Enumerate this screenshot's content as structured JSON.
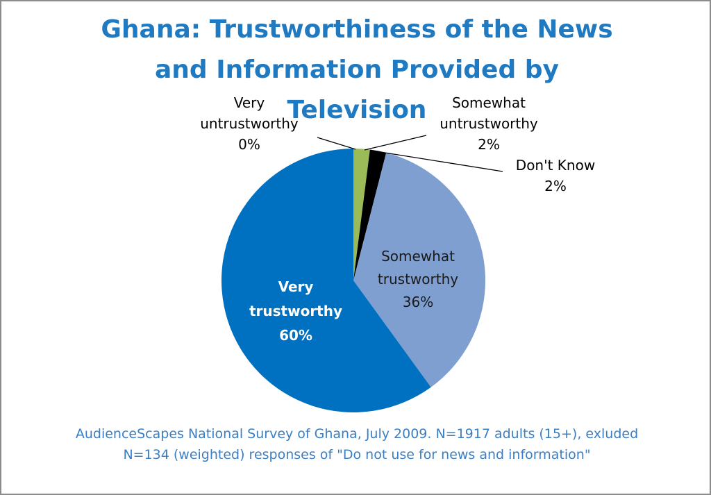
{
  "chart_data": {
    "type": "pie",
    "title_lines": [
      "Ghana: Trustworthiness of the News",
      "and Information Provided by",
      "Television"
    ],
    "slices": [
      {
        "label": [
          "Very",
          "untrustworthy",
          "0%"
        ],
        "value": 0,
        "color": "#f0a830"
      },
      {
        "label": [
          "Somewhat",
          "untrustworthy",
          "2%"
        ],
        "value": 2,
        "color": "#9bbb59"
      },
      {
        "label": [
          "Don't Know",
          "2%"
        ],
        "value": 2,
        "color": "#000000"
      },
      {
        "label": [
          "Somewhat",
          "trustworthy",
          "36%"
        ],
        "value": 36,
        "color": "#7f9fd1"
      },
      {
        "label": [
          "Very",
          "trustworthy",
          "60%"
        ],
        "value": 60,
        "color": "#0070c0"
      }
    ],
    "label_color_outside": "#000000",
    "label_color_inside_dark": "#ffffff",
    "label_color_inside_light": "#1a1a1a",
    "legend": "none",
    "footnote_lines": [
      "AudienceScapes National Survey of Ghana, July 2009. N=1917 adults (15+), exluded",
      "N=134 (weighted) responses of \"Do not use for news and information\""
    ]
  }
}
